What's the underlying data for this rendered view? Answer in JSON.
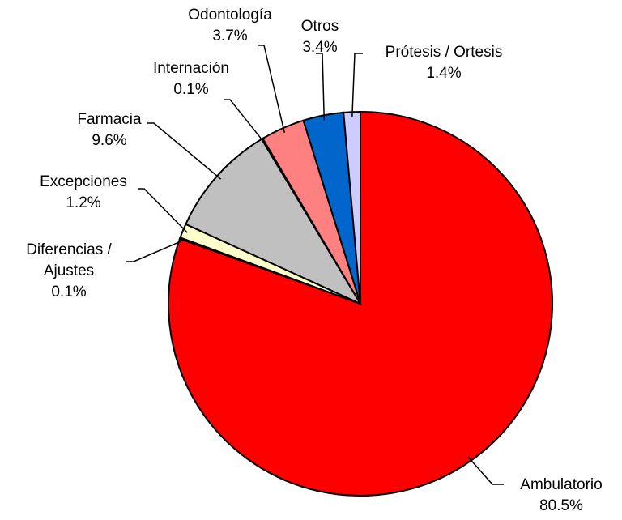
{
  "chart_data": {
    "type": "pie",
    "categories": [
      "Ambulatorio",
      "Diferencias / Ajustes",
      "Excepciones",
      "Farmacia",
      "Internación",
      "Odontología",
      "Otros",
      "Prótesis / Ortesis"
    ],
    "values": [
      80.5,
      0.1,
      1.2,
      9.6,
      0.1,
      3.7,
      3.4,
      1.4
    ],
    "value_labels": [
      "80.5%",
      "0.1%",
      "1.2%",
      "9.6%",
      "0.1%",
      "3.7%",
      "3.4%",
      "1.4%"
    ],
    "colors": [
      "#ff0000",
      "#ffffff",
      "#ffffcc",
      "#c0c0c0",
      "#e0e0e0",
      "#ff8080",
      "#0066cc",
      "#ccccff"
    ]
  }
}
